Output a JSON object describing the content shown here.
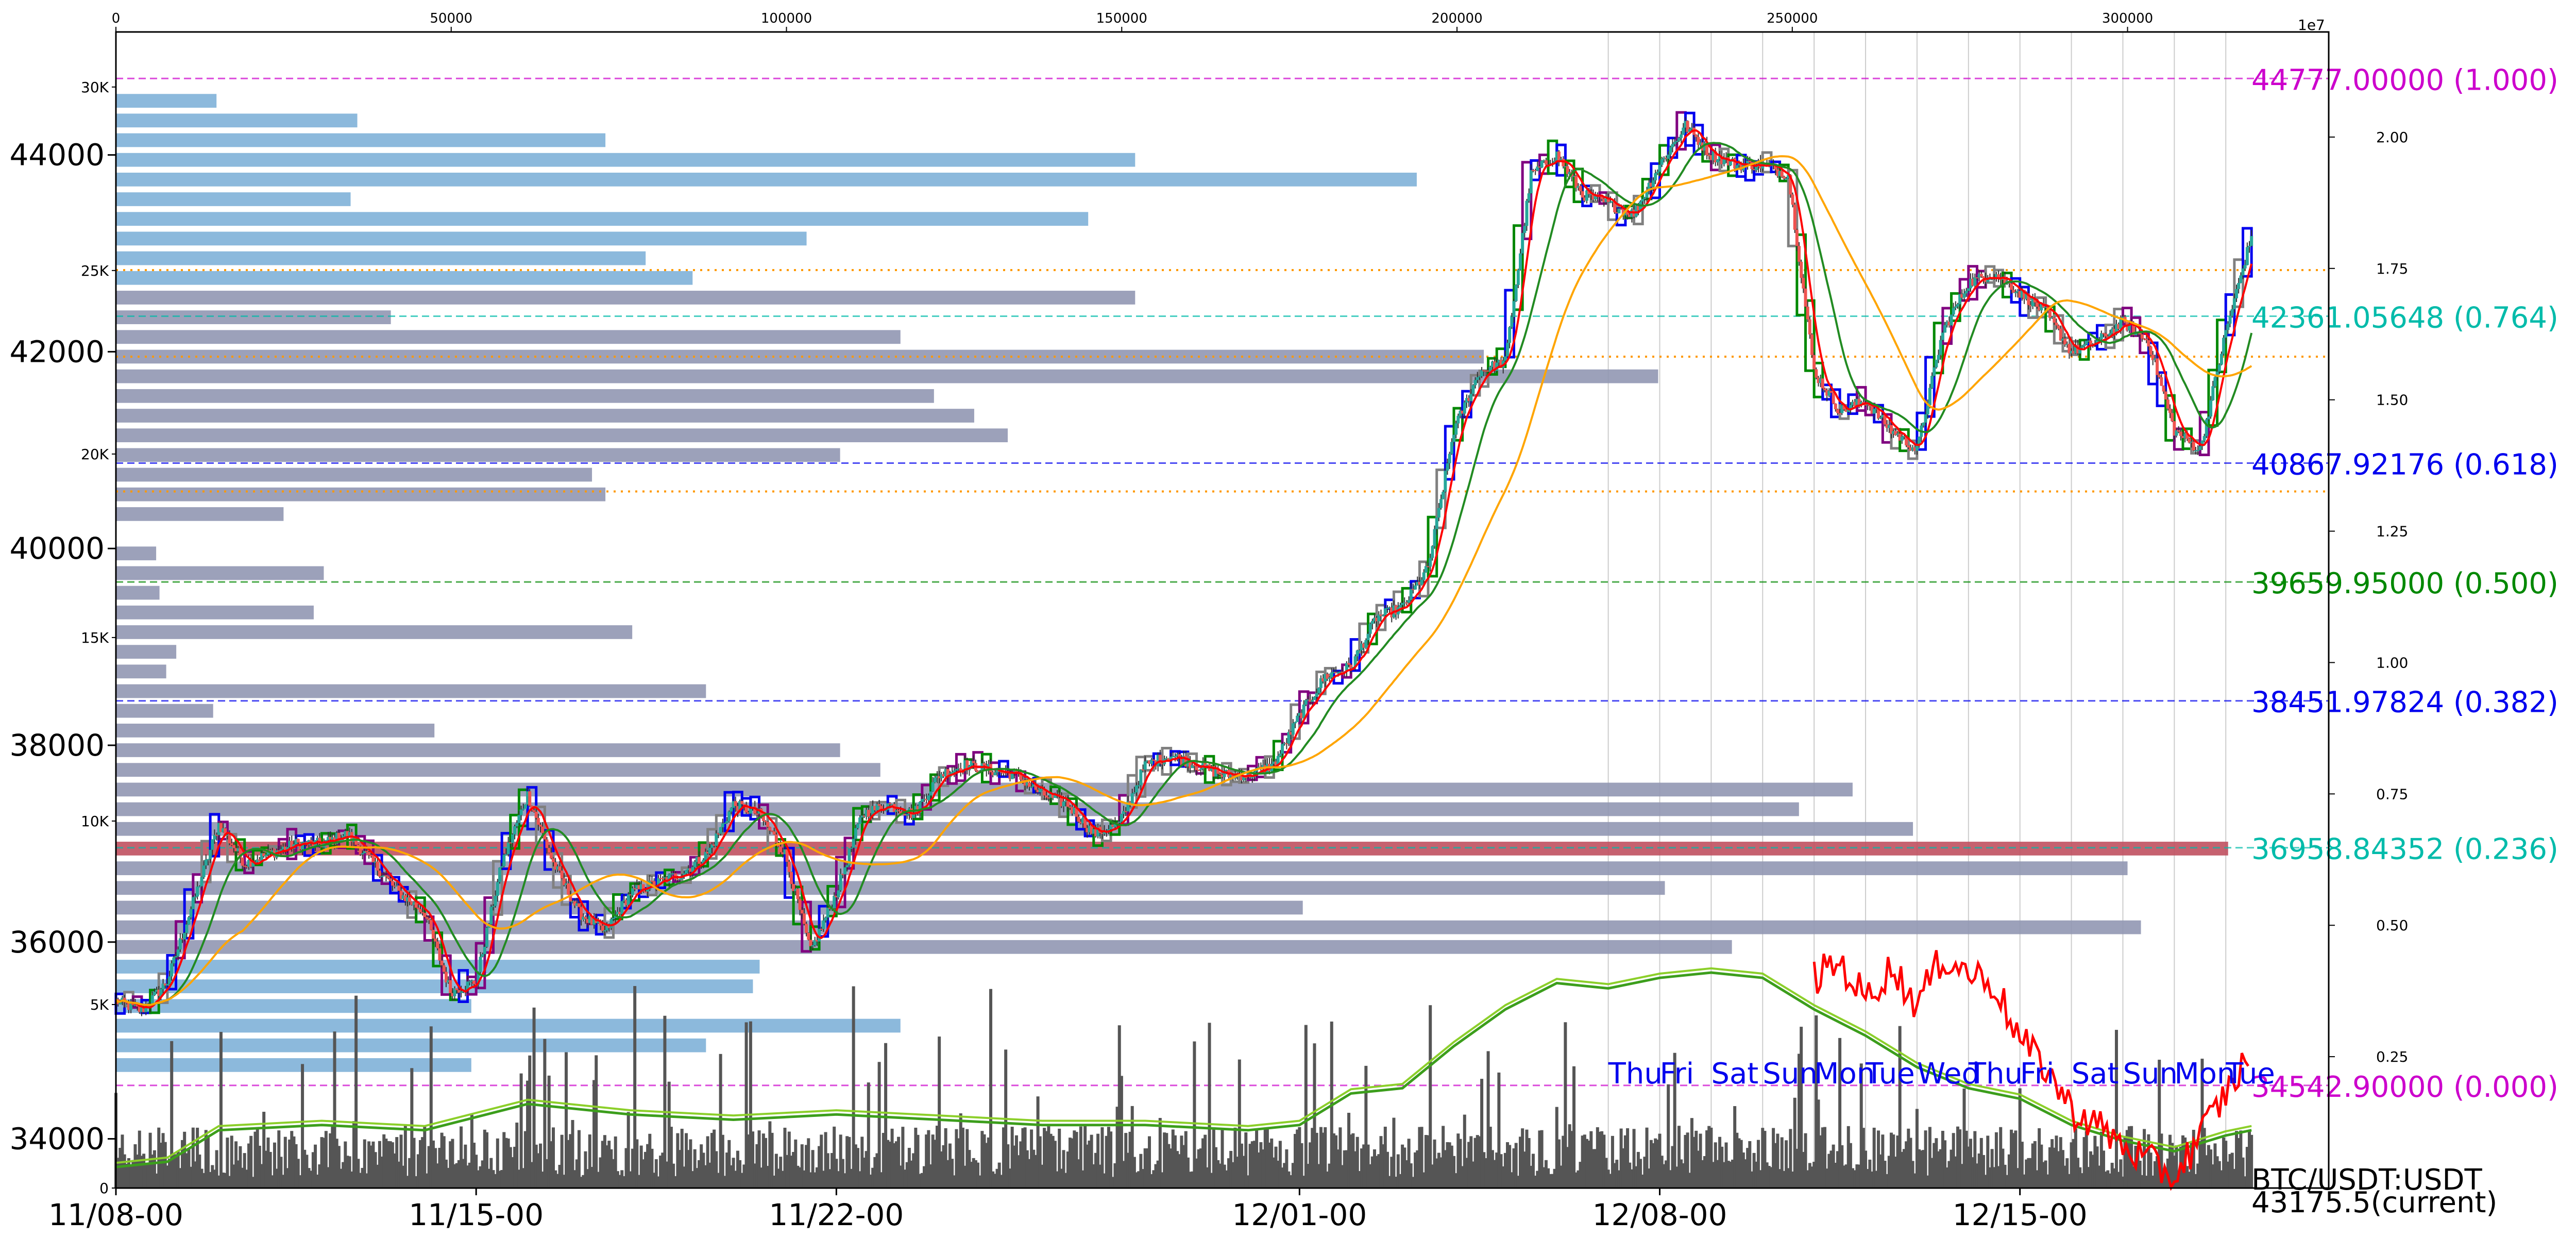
{
  "chart_data": {
    "type": "candlestick",
    "symbol_label": "BTC/USDT:USDT",
    "current_label": "43175.5(current)",
    "price_axis": {
      "ylim": [
        33500,
        45250
      ],
      "ticks": [
        34000,
        36000,
        38000,
        40000,
        42000,
        44000
      ],
      "tick_labels": [
        "34000",
        "36000",
        "38000",
        "40000",
        "42000",
        "44000"
      ]
    },
    "time_axis": {
      "xlim": [
        "2023-11-08T00:00",
        "2023-12-21T00:00"
      ],
      "ticks": [
        "2023-11-08",
        "2023-11-15",
        "2023-11-22",
        "2023-12-01",
        "2023-12-08",
        "2023-12-15"
      ],
      "tick_labels": [
        "11/08-00",
        "11/15-00",
        "11/22-00",
        "12/01-00",
        "12/08-00",
        "12/15-00"
      ]
    },
    "volume_profile_axis": {
      "xlim": [
        0,
        330000
      ],
      "ticks": [
        0,
        50000,
        100000,
        150000,
        200000,
        250000,
        300000
      ],
      "tick_labels": [
        "0",
        "50000",
        "100000",
        "150000",
        "200000",
        "250000",
        "300000"
      ]
    },
    "left_volume_axis": {
      "ylim": [
        0,
        31500
      ],
      "ticks": [
        0,
        5000,
        10000,
        15000,
        20000,
        25000,
        30000
      ],
      "tick_labels": [
        "0",
        "5K",
        "10K",
        "15K",
        "20K",
        "25K",
        "30K"
      ]
    },
    "right_axis": {
      "ylim": [
        0,
        2.2
      ],
      "ticks": [
        0.25,
        0.5,
        0.75,
        1.0,
        1.25,
        1.5,
        1.75,
        2.0
      ],
      "tick_labels": [
        "0.25",
        "0.50",
        "0.75",
        "1.00",
        "1.25",
        "1.50",
        "1.75",
        "2.00"
      ],
      "offset_label": "1e7"
    },
    "price_series": [
      [
        "2023-11-08T00:00",
        35400
      ],
      [
        "2023-11-08T12:00",
        35300
      ],
      [
        "2023-11-09T00:00",
        35600
      ],
      [
        "2023-11-09T12:00",
        36400
      ],
      [
        "2023-11-10T00:00",
        37200
      ],
      [
        "2023-11-10T12:00",
        36800
      ],
      [
        "2023-11-11T00:00",
        36900
      ],
      [
        "2023-11-11T12:00",
        37000
      ],
      [
        "2023-11-12T00:00",
        37000
      ],
      [
        "2023-11-12T12:00",
        37100
      ],
      [
        "2023-11-13T00:00",
        36800
      ],
      [
        "2023-11-13T12:00",
        36500
      ],
      [
        "2023-11-14T00:00",
        36300
      ],
      [
        "2023-11-14T12:00",
        35500
      ],
      [
        "2023-11-15T00:00",
        35600
      ],
      [
        "2023-11-15T12:00",
        36800
      ],
      [
        "2023-11-16T00:00",
        37500
      ],
      [
        "2023-11-16T12:00",
        36800
      ],
      [
        "2023-11-17T00:00",
        36300
      ],
      [
        "2023-11-17T12:00",
        36100
      ],
      [
        "2023-11-18T00:00",
        36500
      ],
      [
        "2023-11-18T12:00",
        36600
      ],
      [
        "2023-11-19T00:00",
        36700
      ],
      [
        "2023-11-19T12:00",
        36900
      ],
      [
        "2023-11-20T00:00",
        37400
      ],
      [
        "2023-11-20T12:00",
        37300
      ],
      [
        "2023-11-21T00:00",
        36900
      ],
      [
        "2023-11-21T12:00",
        35900
      ],
      [
        "2023-11-22T00:00",
        36500
      ],
      [
        "2023-11-22T12:00",
        37300
      ],
      [
        "2023-11-23T00:00",
        37400
      ],
      [
        "2023-11-23T12:00",
        37300
      ],
      [
        "2023-11-24T00:00",
        37700
      ],
      [
        "2023-11-24T12:00",
        37800
      ],
      [
        "2023-11-25T00:00",
        37750
      ],
      [
        "2023-11-25T12:00",
        37700
      ],
      [
        "2023-11-26T00:00",
        37500
      ],
      [
        "2023-11-26T12:00",
        37400
      ],
      [
        "2023-11-27T00:00",
        37100
      ],
      [
        "2023-11-27T12:00",
        37200
      ],
      [
        "2023-11-28T00:00",
        37800
      ],
      [
        "2023-11-28T12:00",
        37900
      ],
      [
        "2023-11-29T00:00",
        37800
      ],
      [
        "2023-11-29T12:00",
        37700
      ],
      [
        "2023-11-30T00:00",
        37700
      ],
      [
        "2023-11-30T12:00",
        37800
      ],
      [
        "2023-12-01T00:00",
        38300
      ],
      [
        "2023-12-01T12:00",
        38700
      ],
      [
        "2023-12-02T00:00",
        38800
      ],
      [
        "2023-12-02T12:00",
        39300
      ],
      [
        "2023-12-03T00:00",
        39400
      ],
      [
        "2023-12-03T12:00",
        39800
      ],
      [
        "2023-12-04T00:00",
        41200
      ],
      [
        "2023-12-04T12:00",
        41800
      ],
      [
        "2023-12-05T00:00",
        41900
      ],
      [
        "2023-12-05T12:00",
        43800
      ],
      [
        "2023-12-06T00:00",
        44000
      ],
      [
        "2023-12-06T12:00",
        43600
      ],
      [
        "2023-12-07T00:00",
        43500
      ],
      [
        "2023-12-07T12:00",
        43400
      ],
      [
        "2023-12-08T00:00",
        43900
      ],
      [
        "2023-12-08T12:00",
        44300
      ],
      [
        "2023-12-09T00:00",
        44000
      ],
      [
        "2023-12-09T12:00",
        43900
      ],
      [
        "2023-12-10T00:00",
        43900
      ],
      [
        "2023-12-10T12:00",
        43800
      ],
      [
        "2023-12-11T00:00",
        41800
      ],
      [
        "2023-12-11T12:00",
        41400
      ],
      [
        "2023-12-12T00:00",
        41500
      ],
      [
        "2023-12-12T12:00",
        41200
      ],
      [
        "2023-12-13T00:00",
        41000
      ],
      [
        "2023-12-13T12:00",
        42200
      ],
      [
        "2023-12-14T00:00",
        42700
      ],
      [
        "2023-12-14T12:00",
        42800
      ],
      [
        "2023-12-15T00:00",
        42600
      ],
      [
        "2023-12-15T12:00",
        42400
      ],
      [
        "2023-12-16T00:00",
        42000
      ],
      [
        "2023-12-16T12:00",
        42100
      ],
      [
        "2023-12-17T00:00",
        42300
      ],
      [
        "2023-12-17T12:00",
        42100
      ],
      [
        "2023-12-18T00:00",
        41200
      ],
      [
        "2023-12-18T12:00",
        41000
      ],
      [
        "2023-12-19T00:00",
        42200
      ],
      [
        "2023-12-19T12:00",
        43175.5
      ]
    ],
    "fibonacci_levels": [
      {
        "label": "44777.00000 (1.000)",
        "price": 44777.0,
        "color": "#cc00cc"
      },
      {
        "label": "42361.05648 (0.764)",
        "price": 42361.05648,
        "color": "#00bbaa"
      },
      {
        "label": "40867.92176 (0.618)",
        "price": 40867.92176,
        "color": "#0000ee"
      },
      {
        "label": "39659.95000 (0.500)",
        "price": 39659.95,
        "color": "#008800"
      },
      {
        "label": "38451.97824 (0.382)",
        "price": 38451.97824,
        "color": "#0000ee"
      },
      {
        "label": "36958.84352 (0.236)",
        "price": 36958.84352,
        "color": "#00bbaa"
      },
      {
        "label": "34542.90000 (0.000)",
        "price": 34542.9,
        "color": "#cc00cc"
      }
    ],
    "support_resistance_lines": [
      {
        "price": 42830,
        "color": "#ff9900"
      },
      {
        "price": 41950,
        "color": "#ff9900"
      },
      {
        "price": 40580,
        "color": "#ff9900"
      }
    ],
    "volume_profile": {
      "bin_height": 200,
      "bins": [
        {
          "price": 44550,
          "volume": 15000,
          "color": "#7fb1d8"
        },
        {
          "price": 44350,
          "volume": 36000,
          "color": "#7fb1d8"
        },
        {
          "price": 44150,
          "volume": 73000,
          "color": "#7fb1d8"
        },
        {
          "price": 43950,
          "volume": 152000,
          "color": "#7fb1d8"
        },
        {
          "price": 43750,
          "volume": 194000,
          "color": "#7fb1d8"
        },
        {
          "price": 43550,
          "volume": 35000,
          "color": "#7fb1d8"
        },
        {
          "price": 43350,
          "volume": 145000,
          "color": "#7fb1d8"
        },
        {
          "price": 43150,
          "volume": 103000,
          "color": "#7fb1d8"
        },
        {
          "price": 42950,
          "volume": 79000,
          "color": "#7fb1d8"
        },
        {
          "price": 42750,
          "volume": 86000,
          "color": "#7fb1d8"
        },
        {
          "price": 42550,
          "volume": 152000,
          "color": "#9197b3"
        },
        {
          "price": 42350,
          "volume": 41000,
          "color": "#9197b3"
        },
        {
          "price": 42150,
          "volume": 117000,
          "color": "#9197b3"
        },
        {
          "price": 41950,
          "volume": 204000,
          "color": "#9197b3"
        },
        {
          "price": 41750,
          "volume": 230000,
          "color": "#9197b3"
        },
        {
          "price": 41550,
          "volume": 122000,
          "color": "#9197b3"
        },
        {
          "price": 41350,
          "volume": 128000,
          "color": "#9197b3"
        },
        {
          "price": 41150,
          "volume": 133000,
          "color": "#9197b3"
        },
        {
          "price": 40950,
          "volume": 108000,
          "color": "#9197b3"
        },
        {
          "price": 40750,
          "volume": 71000,
          "color": "#9197b3"
        },
        {
          "price": 40550,
          "volume": 73000,
          "color": "#9197b3"
        },
        {
          "price": 40350,
          "volume": 25000,
          "color": "#9197b3"
        },
        {
          "price": 39950,
          "volume": 6000,
          "color": "#9197b3"
        },
        {
          "price": 39750,
          "volume": 31000,
          "color": "#9197b3"
        },
        {
          "price": 39550,
          "volume": 6500,
          "color": "#9197b3"
        },
        {
          "price": 39350,
          "volume": 29500,
          "color": "#9197b3"
        },
        {
          "price": 39150,
          "volume": 77000,
          "color": "#9197b3"
        },
        {
          "price": 38950,
          "volume": 9000,
          "color": "#9197b3"
        },
        {
          "price": 38750,
          "volume": 7500,
          "color": "#9197b3"
        },
        {
          "price": 38550,
          "volume": 88000,
          "color": "#9197b3"
        },
        {
          "price": 38350,
          "volume": 14500,
          "color": "#9197b3"
        },
        {
          "price": 38150,
          "volume": 47500,
          "color": "#9197b3"
        },
        {
          "price": 37950,
          "volume": 108000,
          "color": "#9197b3"
        },
        {
          "price": 37750,
          "volume": 114000,
          "color": "#9197b3"
        },
        {
          "price": 37550,
          "volume": 259000,
          "color": "#9197b3"
        },
        {
          "price": 37350,
          "volume": 251000,
          "color": "#9197b3"
        },
        {
          "price": 37150,
          "volume": 268000,
          "color": "#9197b3"
        },
        {
          "price": 36950,
          "volume": 315000,
          "color": "#c0505f"
        },
        {
          "price": 36750,
          "volume": 300000,
          "color": "#9197b3"
        },
        {
          "price": 36550,
          "volume": 231000,
          "color": "#9197b3"
        },
        {
          "price": 36350,
          "volume": 177000,
          "color": "#9197b3"
        },
        {
          "price": 36150,
          "volume": 302000,
          "color": "#9197b3"
        },
        {
          "price": 35950,
          "volume": 241000,
          "color": "#9197b3"
        },
        {
          "price": 35750,
          "volume": 96000,
          "color": "#7fb1d8"
        },
        {
          "price": 35550,
          "volume": 95000,
          "color": "#7fb1d8"
        },
        {
          "price": 35350,
          "volume": 53000,
          "color": "#7fb1d8"
        },
        {
          "price": 35150,
          "volume": 117000,
          "color": "#7fb1d8"
        },
        {
          "price": 34950,
          "volume": 88000,
          "color": "#7fb1d8"
        },
        {
          "price": 34750,
          "volume": 53000,
          "color": "#7fb1d8"
        }
      ]
    },
    "day_of_week_labels": [
      {
        "label": "Thu",
        "date": "2023-12-07",
        "color": "#0000ee"
      },
      {
        "label": "Fri",
        "date": "2023-12-08",
        "color": "#0000ee"
      },
      {
        "label": "Sat",
        "date": "2023-12-09",
        "color": "#0000ee"
      },
      {
        "label": "Sun",
        "date": "2023-12-10",
        "color": "#0000ee"
      },
      {
        "label": "Mon",
        "date": "2023-12-11",
        "color": "#0000ee"
      },
      {
        "label": "Tue",
        "date": "2023-12-12",
        "color": "#0000ee"
      },
      {
        "label": "Wed",
        "date": "2023-12-13",
        "color": "#0000ee"
      },
      {
        "label": "Thu",
        "date": "2023-12-14",
        "color": "#0000ee"
      },
      {
        "label": "Fri",
        "date": "2023-12-15",
        "color": "#0000ee"
      },
      {
        "label": "Sat",
        "date": "2023-12-16",
        "color": "#0000ee"
      },
      {
        "label": "Sun",
        "date": "2023-12-17",
        "color": "#0000ee"
      },
      {
        "label": "Mon",
        "date": "2023-12-18",
        "color": "#0000ee"
      },
      {
        "label": "Tue",
        "date": "2023-12-19",
        "color": "#0000ee"
      }
    ],
    "volume_bars": {
      "color": "#555555",
      "scale_axis": "left_volume_axis"
    },
    "indicator_series_green": [
      [
        "2023-11-08T00:00",
        0.04
      ],
      [
        "2023-11-09T00:00",
        0.05
      ],
      [
        "2023-11-10T00:00",
        0.11
      ],
      [
        "2023-11-12T00:00",
        0.12
      ],
      [
        "2023-11-14T00:00",
        0.11
      ],
      [
        "2023-11-16T00:00",
        0.16
      ],
      [
        "2023-11-18T00:00",
        0.14
      ],
      [
        "2023-11-20T00:00",
        0.13
      ],
      [
        "2023-11-22T00:00",
        0.14
      ],
      [
        "2023-11-24T00:00",
        0.13
      ],
      [
        "2023-11-26T00:00",
        0.12
      ],
      [
        "2023-11-28T00:00",
        0.12
      ],
      [
        "2023-11-30T00:00",
        0.11
      ],
      [
        "2023-12-01T00:00",
        0.12
      ],
      [
        "2023-12-02T00:00",
        0.18
      ],
      [
        "2023-12-03T00:00",
        0.19
      ],
      [
        "2023-12-04T00:00",
        0.27
      ],
      [
        "2023-12-05T00:00",
        0.34
      ],
      [
        "2023-12-06T00:00",
        0.39
      ],
      [
        "2023-12-07T00:00",
        0.38
      ],
      [
        "2023-12-08T00:00",
        0.4
      ],
      [
        "2023-12-09T00:00",
        0.41
      ],
      [
        "2023-12-10T00:00",
        0.4
      ],
      [
        "2023-12-11T00:00",
        0.34
      ],
      [
        "2023-12-12T00:00",
        0.29
      ],
      [
        "2023-12-13T00:00",
        0.23
      ],
      [
        "2023-12-14T00:00",
        0.19
      ],
      [
        "2023-12-15T00:00",
        0.17
      ],
      [
        "2023-12-16T00:00",
        0.12
      ],
      [
        "2023-12-17T00:00",
        0.09
      ],
      [
        "2023-12-18T00:00",
        0.07
      ],
      [
        "2023-12-19T00:00",
        0.1
      ],
      [
        "2023-12-19T12:00",
        0.11
      ]
    ],
    "indicator_series_red": [
      [
        "2023-12-11T00:00",
        0.4
      ],
      [
        "2023-12-11T12:00",
        0.43
      ],
      [
        "2023-12-12T00:00",
        0.36
      ],
      [
        "2023-12-12T12:00",
        0.42
      ],
      [
        "2023-12-13T00:00",
        0.35
      ],
      [
        "2023-12-13T12:00",
        0.44
      ],
      [
        "2023-12-14T00:00",
        0.41
      ],
      [
        "2023-12-14T12:00",
        0.39
      ],
      [
        "2023-12-15T00:00",
        0.28
      ],
      [
        "2023-12-15T12:00",
        0.23
      ],
      [
        "2023-12-16T00:00",
        0.15
      ],
      [
        "2023-12-16T12:00",
        0.12
      ],
      [
        "2023-12-17T00:00",
        0.08
      ],
      [
        "2023-12-17T12:00",
        0.05
      ],
      [
        "2023-12-18T00:00",
        0.02
      ],
      [
        "2023-12-18T12:00",
        0.1
      ],
      [
        "2023-12-19T00:00",
        0.18
      ],
      [
        "2023-12-19T12:00",
        0.26
      ]
    ]
  }
}
